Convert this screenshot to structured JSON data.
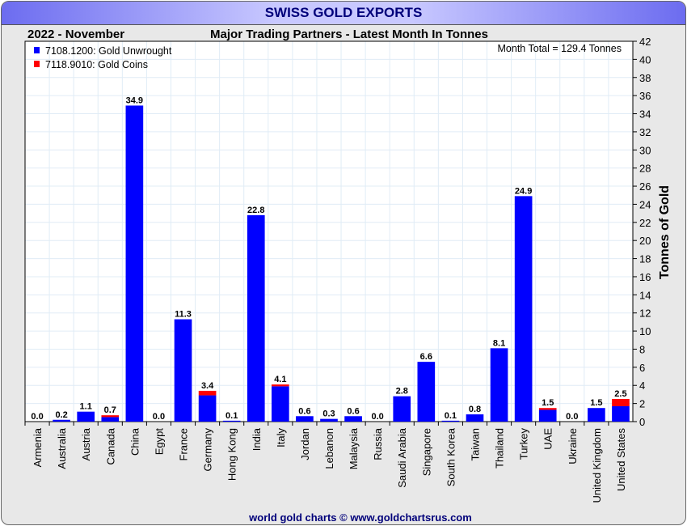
{
  "title": "SWISS GOLD EXPORTS",
  "period": "2022 - November",
  "footer": "world gold charts © www.goldchartsrus.com",
  "chart_data": {
    "type": "bar",
    "stacked": true,
    "title": "Major Trading Partners - Latest Month In Tonnes",
    "ylabel": "Tonnes of Gold",
    "xlabel": "",
    "ylim": [
      0,
      42
    ],
    "ytick_step": 2,
    "annotation": "Month Total = 129.4 Tonnes",
    "legend_position": "top-left",
    "categories": [
      "Armenia",
      "Australia",
      "Austria",
      "Canada",
      "China",
      "Egypt",
      "France",
      "Germany",
      "Hong Kong",
      "India",
      "Italy",
      "Jordan",
      "Lebanon",
      "Malaysia",
      "Russia",
      "Saudi Arabia",
      "Singapore",
      "South Korea",
      "Taiwan",
      "Thailand",
      "Turkey",
      "UAE",
      "Ukraine",
      "United Kingdom",
      "United States"
    ],
    "totals": [
      "0.0",
      "0.2",
      "1.1",
      "0.7",
      "34.9",
      "0.0",
      "11.3",
      "3.4",
      "0.1",
      "22.8",
      "4.1",
      "0.6",
      "0.3",
      "0.6",
      "0.0",
      "2.8",
      "6.6",
      "0.1",
      "0.8",
      "8.1",
      "24.9",
      "1.5",
      "0.0",
      "1.5",
      "2.5"
    ],
    "series": [
      {
        "name": "7108.1200: Gold Unwrought",
        "color": "#0000ff",
        "values": [
          0,
          0.2,
          1.1,
          0.5,
          34.9,
          0,
          11.3,
          2.9,
          0.1,
          22.8,
          3.9,
          0.6,
          0.3,
          0.6,
          0,
          2.8,
          6.6,
          0.1,
          0.8,
          8.1,
          24.9,
          1.3,
          0,
          1.5,
          1.7
        ]
      },
      {
        "name": "7118.9010: Gold Coins",
        "color": "#ff0000",
        "values": [
          0,
          0,
          0,
          0.2,
          0,
          0,
          0,
          0.5,
          0,
          0,
          0.2,
          0,
          0,
          0,
          0,
          0,
          0,
          0,
          0,
          0,
          0,
          0.2,
          0,
          0,
          0.8
        ]
      }
    ]
  }
}
